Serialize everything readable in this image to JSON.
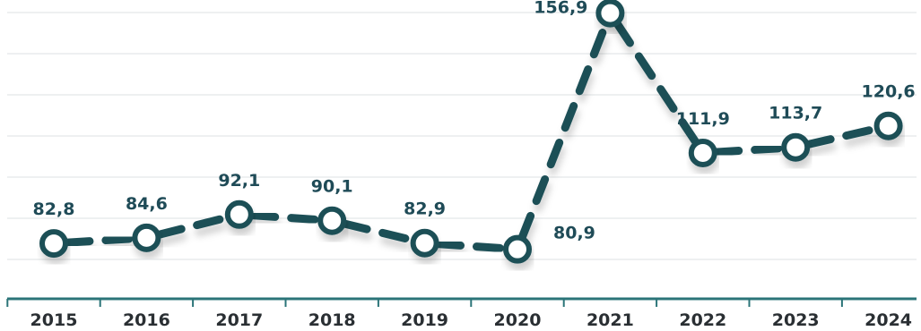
{
  "chart_data": {
    "type": "line",
    "categories": [
      "2015",
      "2016",
      "2017",
      "2018",
      "2019",
      "2020",
      "2021",
      "2022",
      "2023",
      "2024"
    ],
    "values": [
      82.8,
      84.6,
      92.1,
      90.1,
      82.9,
      80.9,
      156.9,
      111.9,
      113.7,
      120.6
    ],
    "data_labels": [
      "82,8",
      "84,6",
      "92,1",
      "90,1",
      "82,9",
      "80,9",
      "156,9",
      "111,9",
      "113,7",
      "120,6"
    ],
    "title": "",
    "xlabel": "",
    "ylabel": "",
    "ylim": [
      40,
      180
    ],
    "grid": true,
    "legend": "none",
    "colors": {
      "line": "#1d4f57",
      "marker_fill": "#ffffff",
      "grid": "#dde1e3",
      "axis": "#2b7478"
    }
  }
}
